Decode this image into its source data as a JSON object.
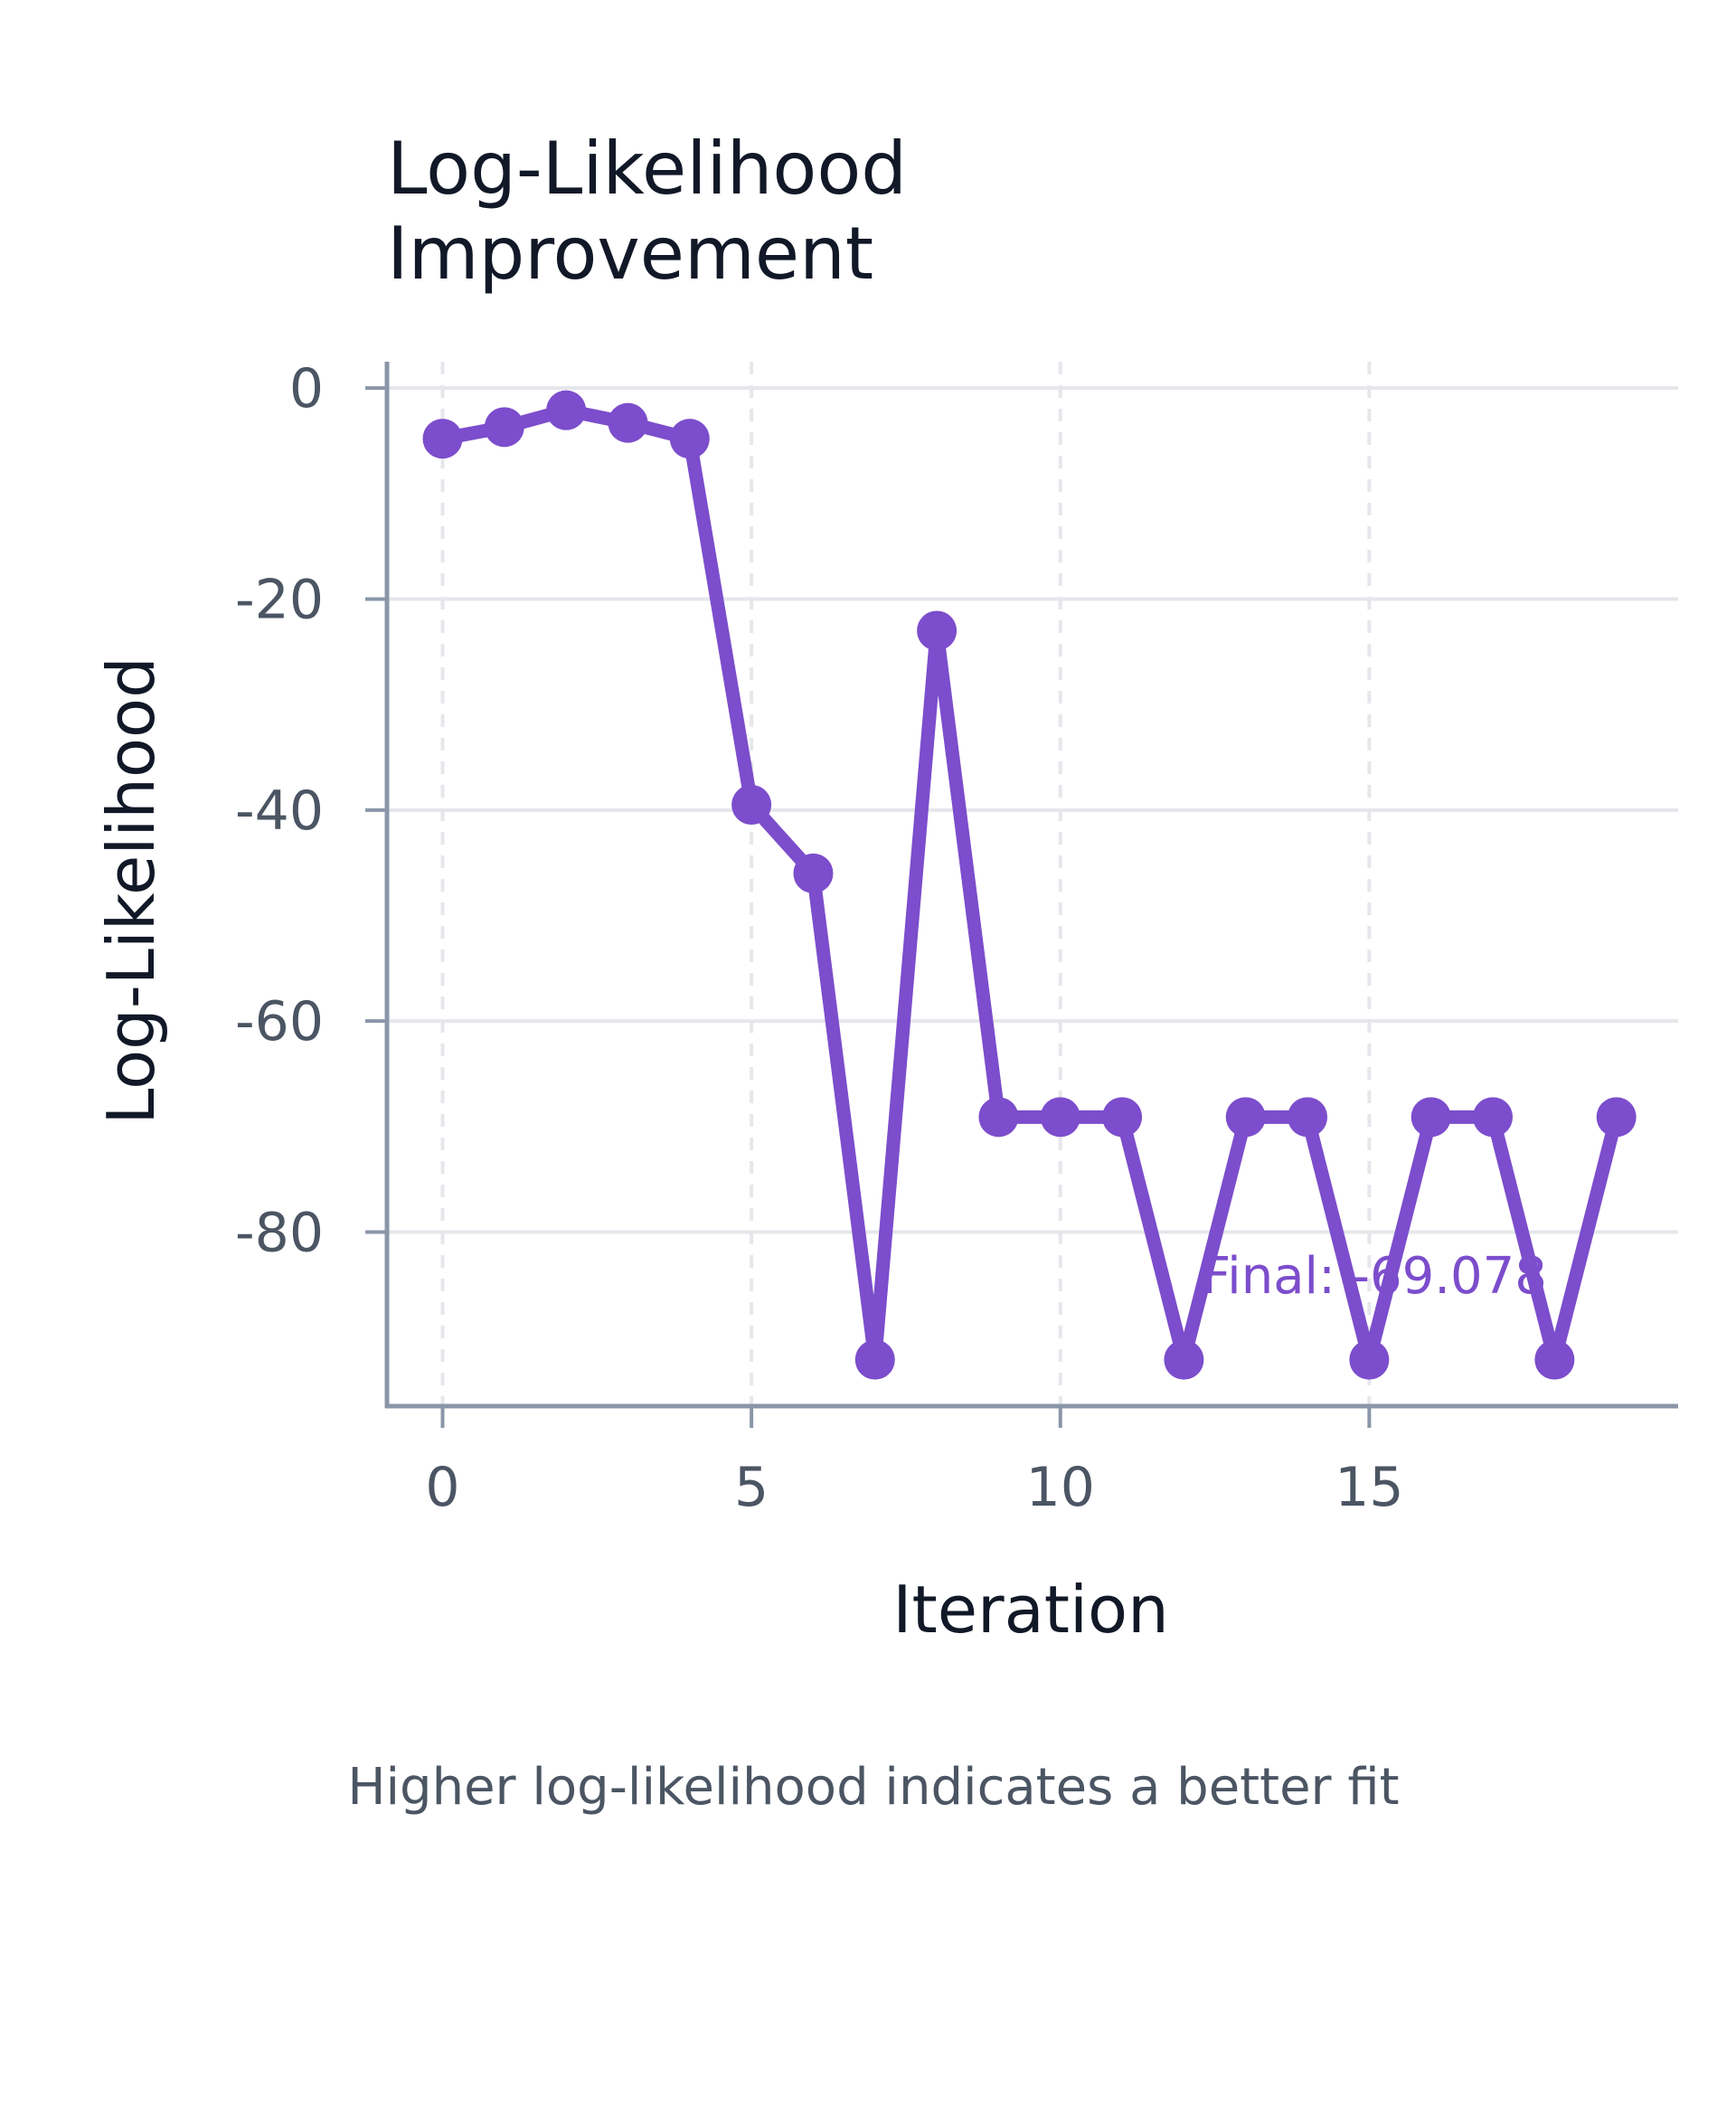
{
  "chart_data": {
    "type": "line",
    "title_lines": [
      "Log-Likelihood",
      "Improvement"
    ],
    "xlabel": "Iteration",
    "ylabel": "Log-Likelihood",
    "caption": "Higher log-likelihood indicates a better fit",
    "annotation": "Final: -69.078",
    "x_ticks": [
      0,
      5,
      10,
      15
    ],
    "y_ticks": [
      0,
      -20,
      -40,
      -60,
      -80
    ],
    "xlim": [
      -0.9,
      20
    ],
    "ylim": [
      -96.5,
      2.5
    ],
    "grid": true,
    "colors": {
      "line": "#7c4dcc",
      "grid": "#e5e7eb",
      "axis": "#8a96a8"
    },
    "series": [
      {
        "x": [
          0,
          1,
          2,
          3,
          4,
          5,
          6,
          7,
          8,
          9,
          10,
          11,
          12,
          13,
          14,
          15,
          16,
          17,
          18,
          19
        ],
        "values": [
          -4.8,
          -3.7,
          -2.1,
          -3.3,
          -4.8,
          -39.5,
          -46.0,
          -92.1,
          -23.0,
          -69.1,
          -69.1,
          -69.1,
          -92.1,
          -69.1,
          -69.1,
          -92.1,
          -69.1,
          -69.1,
          -92.1,
          -69.1
        ]
      }
    ]
  }
}
